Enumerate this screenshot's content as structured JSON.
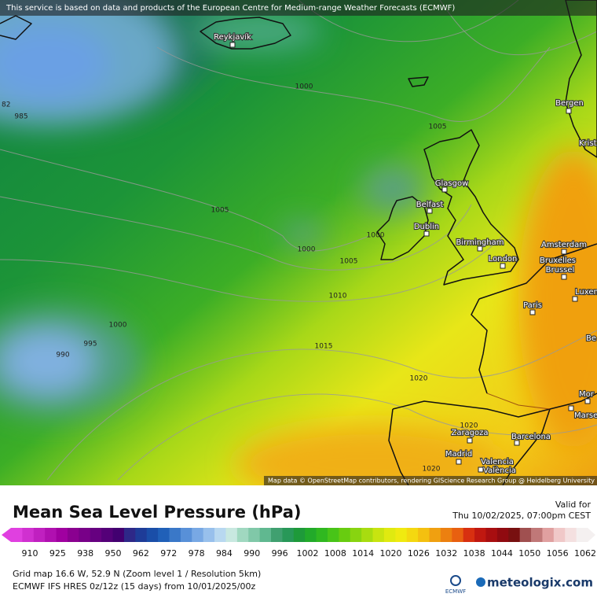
{
  "banner": "This service is based on data and products of the European Centre for Medium-range Weather Forecasts (ECMWF)",
  "attribution": "Map data © OpenStreetMap contributors, rendering GIScience Research Group @ Heidelberg University",
  "cities": [
    "Reykjavík",
    "Bergen",
    "Krist",
    "Glasgow",
    "Belfast",
    "Dublin",
    "Birmingham",
    "London",
    "Amsterdam",
    "Bruxelles",
    "Brussel",
    "Luxembou",
    "Paris",
    "Be",
    "Mor",
    "Marse",
    "Zaragoza",
    "Barcelona",
    "Madrid",
    "Valencia",
    "València"
  ],
  "isobar_labels": [
    82,
    985,
    1000,
    1005,
    1005,
    1000,
    1000,
    1005,
    1010,
    1000,
    995,
    990,
    1015,
    1020,
    1020,
    1020
  ],
  "title": "Mean Sea Level Pressure (hPa)",
  "valid_for": "Valid for",
  "valid_time": "Thu 10/02/2025, 07:00pm CEST",
  "legend": {
    "labels": [
      910,
      925,
      938,
      950,
      962,
      972,
      978,
      984,
      990,
      996,
      1002,
      1008,
      1014,
      1020,
      1026,
      1032,
      1038,
      1044,
      1050,
      1056,
      1062
    ],
    "colors": [
      "#e040e0",
      "#d030d0",
      "#c020c0",
      "#b010b0",
      "#a000a0",
      "#8a0090",
      "#780088",
      "#660080",
      "#540078",
      "#420070",
      "#2e2888",
      "#1e3c98",
      "#1a4ea8",
      "#2060b8",
      "#3a78c8",
      "#5890d8",
      "#78a8e4",
      "#98c0ec",
      "#b8d8f0",
      "#c8e8e0",
      "#a0d8c0",
      "#80c8a8",
      "#60b890",
      "#40a070",
      "#289858",
      "#1e9a3a",
      "#22aa2a",
      "#30b820",
      "#48c418",
      "#68cc10",
      "#88d410",
      "#a8dc10",
      "#c8e410",
      "#e0ea10",
      "#f0ea10",
      "#f4d810",
      "#f4c010",
      "#f0a010",
      "#ec8010",
      "#e86010",
      "#d83010",
      "#c01810",
      "#a80e10",
      "#900a10",
      "#781010",
      "#a05050",
      "#c07878",
      "#e0a0a0",
      "#f0c8c8",
      "#f4e0e0",
      "#f4f0f0"
    ]
  },
  "grid_info": "Grid map 16.6 W, 52.9 N (Zoom level 1 / Resolution 5km)",
  "model_info": "ECMWF IFS HRES 0z/12z (15 days) from  10/01/2025/00z",
  "ecmwf_logo": "ECMWF",
  "site": "meteologix.com"
}
